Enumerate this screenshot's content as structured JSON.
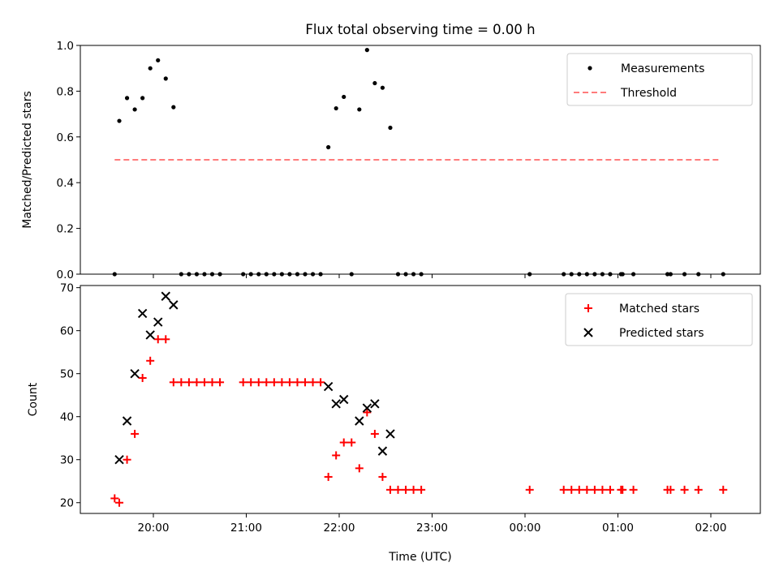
{
  "chart_data": [
    {
      "type": "scatter",
      "title": "Flux total observing time = 0.00 h",
      "xlabel": "",
      "ylabel": "Matched/Predicted stars",
      "ylim": [
        0,
        1.0
      ],
      "yticks": [
        "0.0",
        "0.2",
        "0.4",
        "0.6",
        "0.8",
        "1.0"
      ],
      "legend_position": "top-right",
      "series": [
        {
          "name": "Measurements",
          "marker": "dot",
          "color": "#000000",
          "points": [
            [
              "19:35",
              0.0
            ],
            [
              "19:38",
              0.67
            ],
            [
              "19:43",
              0.77
            ],
            [
              "19:48",
              0.72
            ],
            [
              "19:53",
              0.77
            ],
            [
              "19:58",
              0.9
            ],
            [
              "20:03",
              0.935
            ],
            [
              "20:08",
              0.855
            ],
            [
              "20:13",
              0.73
            ],
            [
              "20:18",
              0.0
            ],
            [
              "20:23",
              0.0
            ],
            [
              "20:28",
              0.0
            ],
            [
              "20:33",
              0.0
            ],
            [
              "20:38",
              0.0
            ],
            [
              "20:43",
              0.0
            ],
            [
              "20:58",
              0.0
            ],
            [
              "21:03",
              0.0
            ],
            [
              "21:08",
              0.0
            ],
            [
              "21:13",
              0.0
            ],
            [
              "21:18",
              0.0
            ],
            [
              "21:23",
              0.0
            ],
            [
              "21:28",
              0.0
            ],
            [
              "21:33",
              0.0
            ],
            [
              "21:38",
              0.0
            ],
            [
              "21:43",
              0.0
            ],
            [
              "21:48",
              0.0
            ],
            [
              "21:53",
              0.555
            ],
            [
              "21:58",
              0.725
            ],
            [
              "22:03",
              0.775
            ],
            [
              "22:08",
              0.0
            ],
            [
              "22:13",
              0.72
            ],
            [
              "22:18",
              0.98
            ],
            [
              "22:23",
              0.835
            ],
            [
              "22:28",
              0.815
            ],
            [
              "22:33",
              0.64
            ],
            [
              "22:38",
              0.0
            ],
            [
              "22:43",
              0.0
            ],
            [
              "22:48",
              0.0
            ],
            [
              "22:53",
              0.0
            ],
            [
              "00:03",
              0.0
            ],
            [
              "00:25",
              0.0
            ],
            [
              "00:30",
              0.0
            ],
            [
              "00:35",
              0.0
            ],
            [
              "00:40",
              0.0
            ],
            [
              "00:45",
              0.0
            ],
            [
              "00:50",
              0.0
            ],
            [
              "00:55",
              0.0
            ],
            [
              "01:02",
              0.0
            ],
            [
              "01:03",
              0.0
            ],
            [
              "01:10",
              0.0
            ],
            [
              "01:32",
              0.0
            ],
            [
              "01:34",
              0.0
            ],
            [
              "01:43",
              0.0
            ],
            [
              "01:52",
              0.0
            ],
            [
              "02:08",
              0.0
            ]
          ]
        },
        {
          "name": "Threshold",
          "marker": "dashed-line",
          "color": "#ff7b7b",
          "points": [
            [
              "19:35",
              0.5
            ],
            [
              "02:05",
              0.5
            ]
          ]
        }
      ]
    },
    {
      "type": "scatter",
      "title": "",
      "xlabel": "Time (UTC)",
      "ylabel": "Count",
      "ylim": [
        17.5,
        70.5
      ],
      "yticks": [
        "20",
        "30",
        "40",
        "50",
        "60",
        "70"
      ],
      "xticks": [
        "20:00",
        "21:00",
        "22:00",
        "23:00",
        "00:00",
        "01:00",
        "02:00"
      ],
      "legend_position": "top-right",
      "series": [
        {
          "name": "Matched stars",
          "marker": "plus",
          "color": "#ff0000",
          "points": [
            [
              "19:35",
              21
            ],
            [
              "19:38",
              20
            ],
            [
              "19:43",
              30
            ],
            [
              "19:48",
              36
            ],
            [
              "19:53",
              49
            ],
            [
              "19:58",
              53
            ],
            [
              "20:03",
              58
            ],
            [
              "20:08",
              58
            ],
            [
              "20:13",
              48
            ],
            [
              "20:18",
              48
            ],
            [
              "20:23",
              48
            ],
            [
              "20:28",
              48
            ],
            [
              "20:33",
              48
            ],
            [
              "20:38",
              48
            ],
            [
              "20:43",
              48
            ],
            [
              "20:58",
              48
            ],
            [
              "21:03",
              48
            ],
            [
              "21:08",
              48
            ],
            [
              "21:13",
              48
            ],
            [
              "21:18",
              48
            ],
            [
              "21:23",
              48
            ],
            [
              "21:28",
              48
            ],
            [
              "21:33",
              48
            ],
            [
              "21:38",
              48
            ],
            [
              "21:43",
              48
            ],
            [
              "21:48",
              48
            ],
            [
              "21:53",
              26
            ],
            [
              "21:58",
              31
            ],
            [
              "22:03",
              34
            ],
            [
              "22:08",
              34
            ],
            [
              "22:13",
              28
            ],
            [
              "22:18",
              41
            ],
            [
              "22:23",
              36
            ],
            [
              "22:28",
              26
            ],
            [
              "22:33",
              23
            ],
            [
              "22:38",
              23
            ],
            [
              "22:43",
              23
            ],
            [
              "22:48",
              23
            ],
            [
              "22:53",
              23
            ],
            [
              "00:03",
              23
            ],
            [
              "00:25",
              23
            ],
            [
              "00:30",
              23
            ],
            [
              "00:35",
              23
            ],
            [
              "00:40",
              23
            ],
            [
              "00:45",
              23
            ],
            [
              "00:50",
              23
            ],
            [
              "00:55",
              23
            ],
            [
              "01:02",
              23
            ],
            [
              "01:03",
              23
            ],
            [
              "01:10",
              23
            ],
            [
              "01:32",
              23
            ],
            [
              "01:34",
              23
            ],
            [
              "01:43",
              23
            ],
            [
              "01:52",
              23
            ],
            [
              "02:08",
              23
            ]
          ]
        },
        {
          "name": "Predicted stars",
          "marker": "x",
          "color": "#000000",
          "points": [
            [
              "19:38",
              30
            ],
            [
              "19:43",
              39
            ],
            [
              "19:48",
              50
            ],
            [
              "19:53",
              64
            ],
            [
              "19:58",
              59
            ],
            [
              "20:03",
              62
            ],
            [
              "20:08",
              68
            ],
            [
              "20:13",
              66
            ],
            [
              "21:53",
              47
            ],
            [
              "21:58",
              43
            ],
            [
              "22:03",
              44
            ],
            [
              "22:13",
              39
            ],
            [
              "22:18",
              42
            ],
            [
              "22:23",
              43
            ],
            [
              "22:28",
              32
            ],
            [
              "22:33",
              36
            ]
          ]
        }
      ]
    }
  ]
}
